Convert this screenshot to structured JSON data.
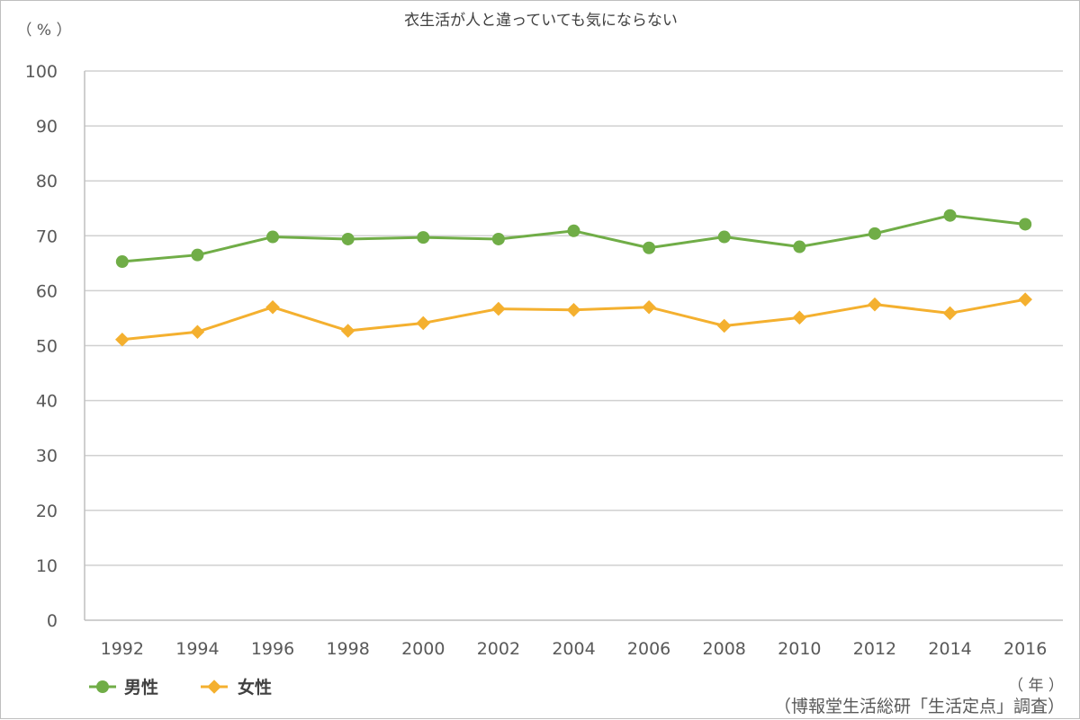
{
  "chart_data": {
    "type": "line",
    "title": "衣生活が人と違っていても気にならない",
    "ylabel": "（ % ）",
    "xlabel": "（ 年 ）",
    "ylim": [
      0,
      100
    ],
    "yticks": [
      0,
      10,
      20,
      30,
      40,
      50,
      60,
      70,
      80,
      90,
      100
    ],
    "grid": true,
    "legend_position": "bottom-left",
    "categories": [
      "1992",
      "1994",
      "1996",
      "1998",
      "2000",
      "2002",
      "2004",
      "2006",
      "2008",
      "2010",
      "2012",
      "2014",
      "2016"
    ],
    "series": [
      {
        "name": "男性",
        "color": "#70ad47",
        "marker": "circle",
        "values": [
          65.3,
          66.5,
          69.8,
          69.4,
          69.7,
          69.4,
          70.9,
          67.8,
          69.8,
          68.0,
          70.4,
          73.7,
          72.1
        ]
      },
      {
        "name": "女性",
        "color": "#f4b02f",
        "marker": "diamond",
        "values": [
          51.1,
          52.5,
          57.0,
          52.7,
          54.1,
          56.7,
          56.5,
          57.0,
          53.6,
          55.1,
          57.5,
          55.9,
          58.4
        ]
      }
    ],
    "source": "（博報堂生活総研「生活定点」調査）"
  }
}
